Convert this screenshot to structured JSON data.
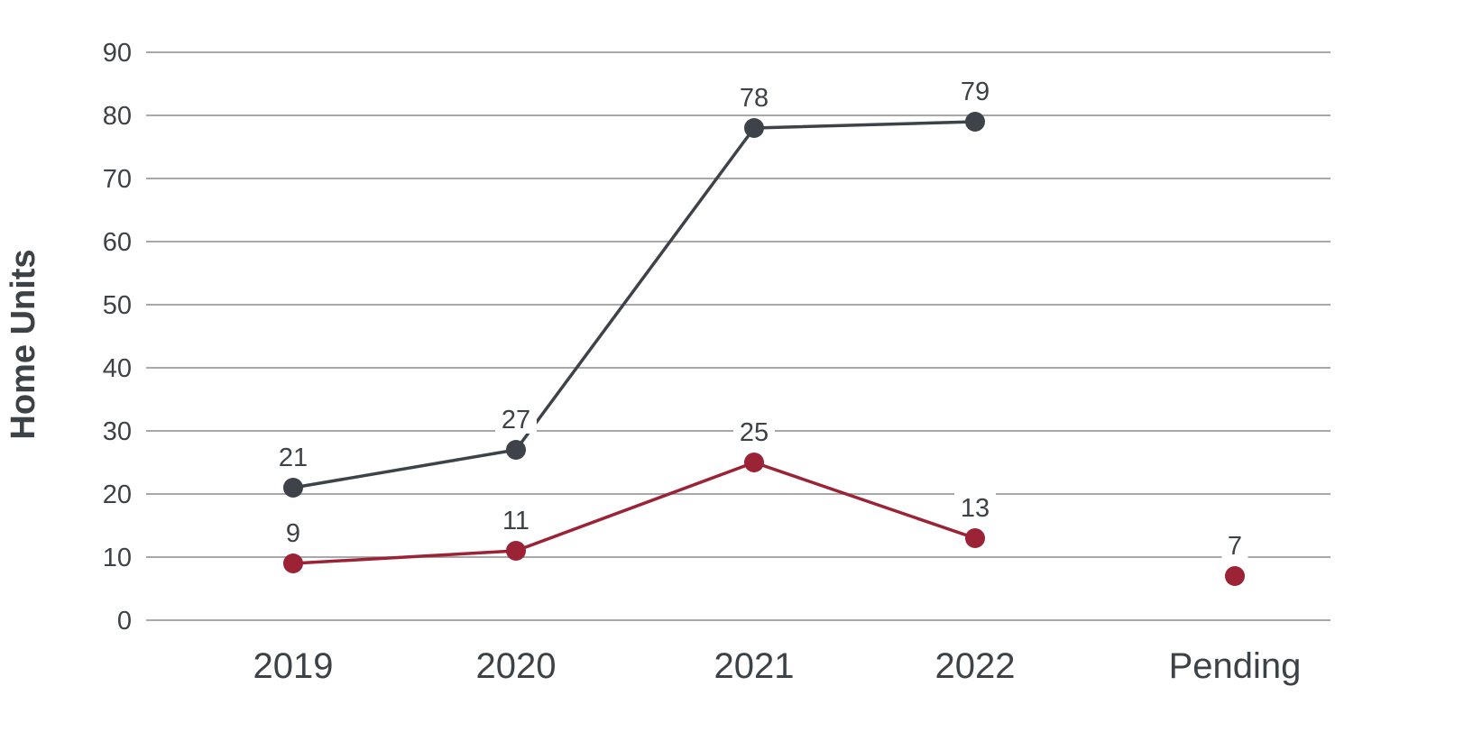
{
  "chart_data": {
    "type": "line",
    "title": "",
    "xlabel": "",
    "ylabel": "Home Units",
    "categories": [
      "2019",
      "2020",
      "2021",
      "2022",
      "Pending"
    ],
    "ylim": [
      0,
      90
    ],
    "yticks": [
      0,
      10,
      20,
      30,
      40,
      50,
      60,
      70,
      80,
      90
    ],
    "grid": true,
    "series": [
      {
        "color": "#3d4349",
        "values": [
          21,
          27,
          78,
          79,
          null
        ],
        "labels": [
          "21",
          "27",
          "78",
          "79",
          ""
        ]
      },
      {
        "color": "#9b2335",
        "values": [
          9,
          11,
          25,
          13,
          7
        ],
        "labels": [
          "9",
          "11",
          "25",
          "13",
          "7"
        ]
      }
    ]
  }
}
